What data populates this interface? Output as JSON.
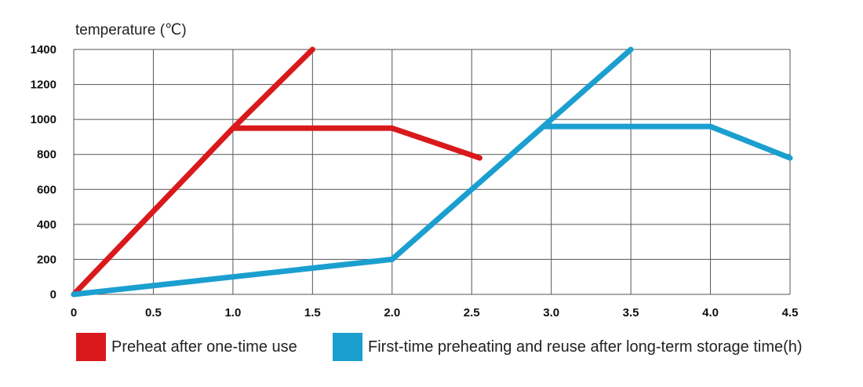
{
  "chart_data": {
    "type": "line",
    "ylabel": "temperature (℃)",
    "xlabel": "time(h)",
    "xlim": [
      0,
      4.5
    ],
    "ylim": [
      0,
      1400
    ],
    "xticks": [
      "0",
      "0.5",
      "1.0",
      "1.5",
      "2.0",
      "2.5",
      "3.0",
      "3.5",
      "4.0",
      "4.5"
    ],
    "xtick_values": [
      0,
      0.5,
      1.0,
      1.5,
      2.0,
      2.5,
      3.0,
      3.5,
      4.0,
      4.5
    ],
    "yticks": [
      "0",
      "200",
      "400",
      "600",
      "800",
      "1000",
      "1200",
      "1400"
    ],
    "ytick_values": [
      0,
      200,
      400,
      600,
      800,
      1000,
      1200,
      1400
    ],
    "grid": true,
    "legend_position": "bottom",
    "series": [
      {
        "name": "Preheat after one-time use",
        "color": "#d9191c",
        "segments": [
          [
            [
              0,
              0
            ],
            [
              1.0,
              950
            ],
            [
              2.0,
              950
            ],
            [
              2.55,
              780
            ]
          ],
          [
            [
              1.0,
              950
            ],
            [
              1.5,
              1400
            ]
          ]
        ]
      },
      {
        "name": "First-time preheating and reuse after long-term storage",
        "color": "#1b9fcf",
        "segments": [
          [
            [
              0,
              0
            ],
            [
              2.0,
              200
            ],
            [
              2.95,
              960
            ],
            [
              4.0,
              960
            ],
            [
              4.5,
              780
            ]
          ],
          [
            [
              2.95,
              960
            ],
            [
              3.5,
              1400
            ]
          ]
        ]
      }
    ]
  },
  "legend": {
    "items": [
      {
        "label": "Preheat after one-time use",
        "color": "#d9191c"
      },
      {
        "label": "First-time preheating and reuse after long-term storage  time(h)",
        "color": "#1b9fcf"
      }
    ]
  }
}
